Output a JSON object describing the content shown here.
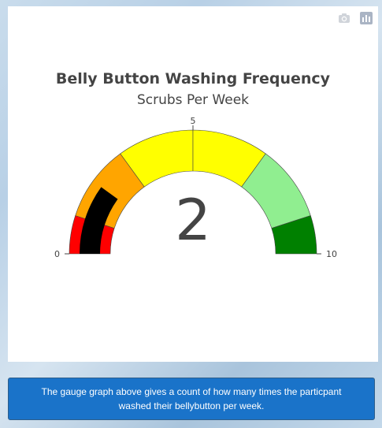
{
  "chart_data": {
    "type": "gauge",
    "title": "Belly Button Washing Frequency",
    "subtitle": "Scrubs Per Week",
    "value": 2,
    "range": [
      0,
      10
    ],
    "tick_labels": [
      "0",
      "5",
      "10"
    ],
    "steps": [
      {
        "range": [
          0,
          1
        ],
        "color": "#ff0000"
      },
      {
        "range": [
          1,
          3
        ],
        "color": "#ffa500"
      },
      {
        "range": [
          3,
          5
        ],
        "color": "#ffff00"
      },
      {
        "range": [
          5,
          7
        ],
        "color": "#ffff00"
      },
      {
        "range": [
          7,
          9
        ],
        "color": "#90ee90"
      },
      {
        "range": [
          9,
          10
        ],
        "color": "#008000"
      }
    ],
    "bar_color": "#000000"
  },
  "modebar": {
    "camera_icon": "camera-icon",
    "plotly_icon": "plotly-logo-icon"
  },
  "info": {
    "text": "The gauge graph above gives a count of how many times the particpant washed their bellybutton per week."
  }
}
